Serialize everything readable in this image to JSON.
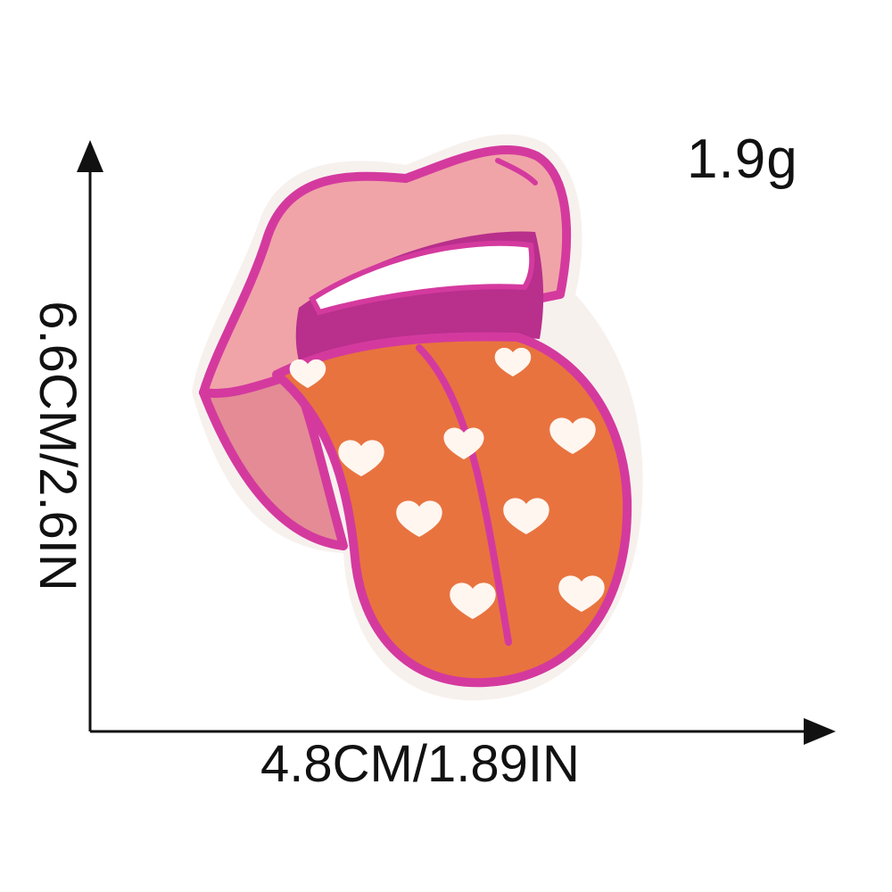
{
  "product": {
    "image_name": "lips-tongue-patch-icon",
    "colors": {
      "outline": "#d43a9e",
      "lip": "#f0a4a8",
      "lip_inner": "#e48b96",
      "mouth": "#b82f8c",
      "teeth": "#ffffff",
      "tongue": "#e8733f",
      "hearts": "#fff6f0",
      "felt_edge": "#f7f1ee"
    }
  },
  "dimensions": {
    "weight": "1.9g",
    "width": "4.8CM/1.89IN",
    "height": "6.6CM/2.6IN"
  }
}
